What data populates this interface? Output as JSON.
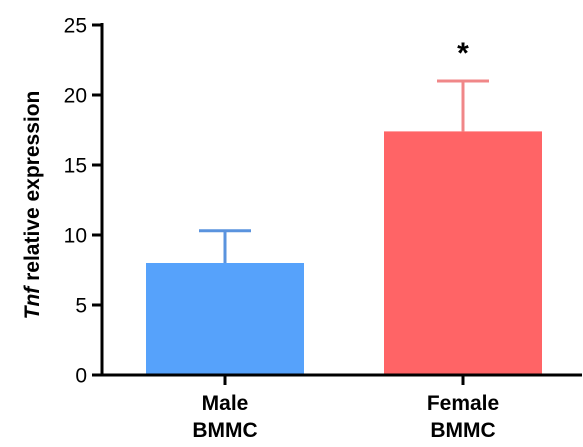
{
  "chart_data": {
    "type": "bar",
    "categories": [
      [
        "Male",
        "BMMC"
      ],
      [
        "Female",
        "BMMC"
      ]
    ],
    "values": [
      8.0,
      17.4
    ],
    "errors": [
      2.3,
      3.6
    ],
    "colors": [
      "#56a2fb",
      "#ff6466"
    ],
    "error_colors": [
      "#5a93de",
      "#f08788"
    ],
    "annotations": [
      "",
      "*"
    ],
    "ylabel_italic": "Tnf",
    "ylabel_rest": " relative expression",
    "ylim": [
      0,
      25
    ],
    "yticks": [
      0,
      5,
      10,
      15,
      20,
      25
    ],
    "grid": false
  }
}
